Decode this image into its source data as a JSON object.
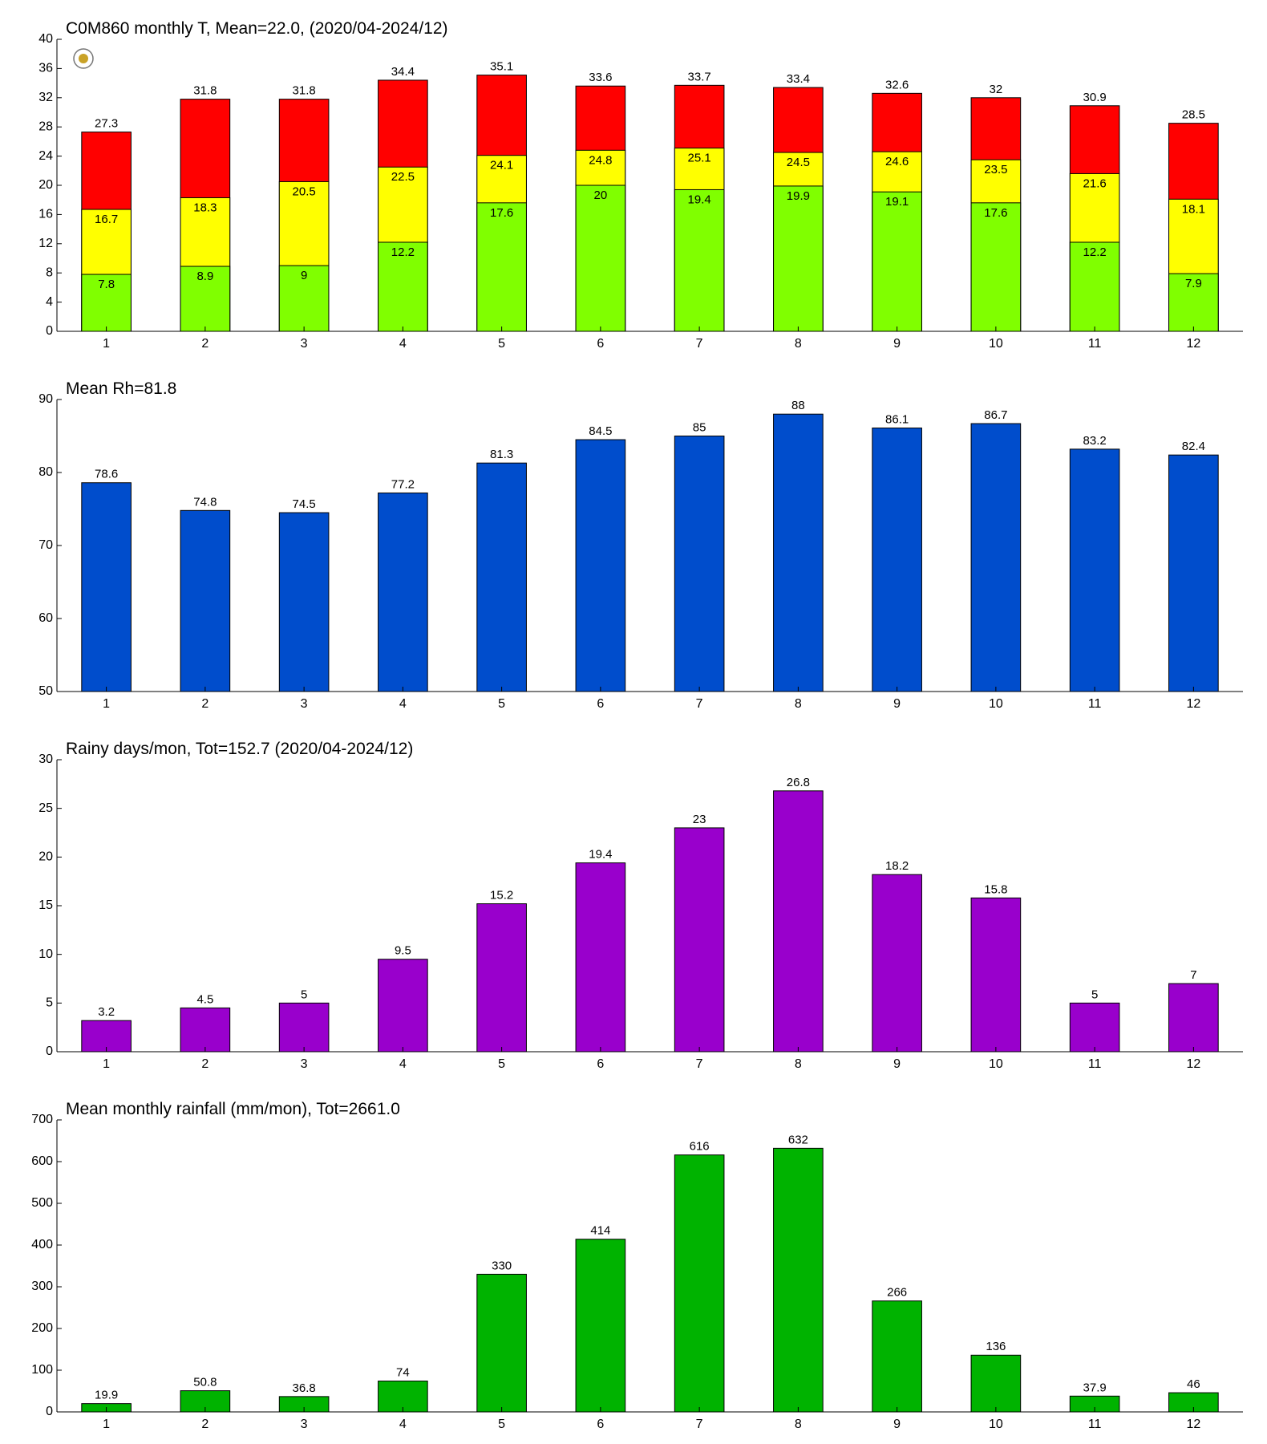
{
  "chart_data": [
    {
      "type": "bar",
      "title": "C0M860 monthly T, Mean=22.0, (2020/04-2024/12)",
      "categories": [
        "1",
        "2",
        "3",
        "4",
        "5",
        "6",
        "7",
        "8",
        "9",
        "10",
        "11",
        "12"
      ],
      "series": [
        {
          "color": "#ff0000",
          "values": [
            27.3,
            31.8,
            31.8,
            34.4,
            35.1,
            33.6,
            33.7,
            33.4,
            32.6,
            32,
            30.9,
            28.5
          ]
        },
        {
          "color": "#ffff00",
          "values": [
            16.7,
            18.3,
            20.5,
            22.5,
            24.1,
            24.8,
            25.1,
            24.5,
            24.6,
            23.5,
            21.6,
            18.1
          ]
        },
        {
          "color": "#80ff00",
          "values": [
            7.8,
            8.9,
            9,
            12.2,
            17.6,
            20,
            19.4,
            19.9,
            19.1,
            17.6,
            12.2,
            7.9
          ]
        }
      ],
      "ylim": [
        0,
        40
      ],
      "yticks": [
        0,
        4,
        8,
        12,
        16,
        20,
        24,
        28,
        32,
        36,
        40
      ]
    },
    {
      "type": "bar",
      "title": "Mean Rh=81.8",
      "categories": [
        "1",
        "2",
        "3",
        "4",
        "5",
        "6",
        "7",
        "8",
        "9",
        "10",
        "11",
        "12"
      ],
      "series": [
        {
          "color": "#004dcc",
          "values": [
            78.6,
            74.8,
            74.5,
            77.2,
            81.3,
            84.5,
            85,
            88,
            86.1,
            86.7,
            83.2,
            82.4
          ]
        }
      ],
      "ylim": [
        50,
        90
      ],
      "yticks": [
        50,
        60,
        70,
        80,
        90
      ]
    },
    {
      "type": "bar",
      "title": "Rainy days/mon, Tot=152.7 (2020/04-2024/12)",
      "categories": [
        "1",
        "2",
        "3",
        "4",
        "5",
        "6",
        "7",
        "8",
        "9",
        "10",
        "11",
        "12"
      ],
      "series": [
        {
          "color": "#9900cc",
          "values": [
            3.2,
            4.5,
            5,
            9.5,
            15.2,
            19.4,
            23,
            26.8,
            18.2,
            15.8,
            5,
            7
          ]
        }
      ],
      "ylim": [
        0,
        30
      ],
      "yticks": [
        0,
        5,
        10,
        15,
        20,
        25,
        30
      ]
    },
    {
      "type": "bar",
      "title": "Mean monthly rainfall (mm/mon), Tot=2661.0",
      "categories": [
        "1",
        "2",
        "3",
        "4",
        "5",
        "6",
        "7",
        "8",
        "9",
        "10",
        "11",
        "12"
      ],
      "series": [
        {
          "color": "#00b300",
          "values": [
            19.9,
            50.8,
            36.8,
            74,
            330,
            414,
            616,
            632,
            266,
            136,
            37.9,
            46
          ]
        }
      ],
      "ylim": [
        0,
        700
      ],
      "yticks": [
        0,
        100,
        200,
        300,
        400,
        500,
        600,
        700
      ]
    }
  ]
}
